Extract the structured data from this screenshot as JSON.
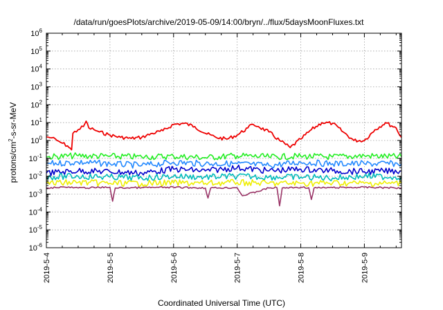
{
  "chart_data": {
    "type": "line",
    "title": "/data/run/goesPlots/archive/2019-05-09/14:00/bryn/../flux/5daysMoonFluxes.txt",
    "xlabel": "Coordinated Universal Time (UTC)",
    "ylabel": "protons/cm2-s-sr-MeV",
    "ylabel_parts": {
      "base": "protons/cm",
      "sup": "2",
      "rest": "-s-sr-MeV"
    },
    "yscale": "log",
    "ylim": [
      1e-06,
      1000000.0
    ],
    "xlim": [
      "2019-05-04",
      "2019-05-09T14:00"
    ],
    "grid": true,
    "y_ticks": [
      {
        "base": "10",
        "exp": "-6",
        "value": -6
      },
      {
        "base": "10",
        "exp": "-5",
        "value": -5
      },
      {
        "base": "10",
        "exp": "-4",
        "value": -4
      },
      {
        "base": "10",
        "exp": "-3",
        "value": -3
      },
      {
        "base": "10",
        "exp": "-2",
        "value": -2
      },
      {
        "base": "10",
        "exp": "-1",
        "value": -1
      },
      {
        "base": "10",
        "exp": "0",
        "value": 0
      },
      {
        "base": "10",
        "exp": "1",
        "value": 1
      },
      {
        "base": "10",
        "exp": "2",
        "value": 2
      },
      {
        "base": "10",
        "exp": "3",
        "value": 3
      },
      {
        "base": "10",
        "exp": "4",
        "value": 4
      },
      {
        "base": "10",
        "exp": "5",
        "value": 5
      },
      {
        "base": "10",
        "exp": "6",
        "value": 6
      }
    ],
    "x_ticks": [
      {
        "label": "2019-5-4",
        "date": "2019-05-04"
      },
      {
        "label": "2019-5-5",
        "date": "2019-05-05"
      },
      {
        "label": "2019-5-6",
        "date": "2019-05-06"
      },
      {
        "label": "2019-5-7",
        "date": "2019-05-07"
      },
      {
        "label": "2019-5-8",
        "date": "2019-05-08"
      },
      {
        "label": "2019-5-9",
        "date": "2019-05-09"
      }
    ],
    "series": [
      {
        "color": "#ee0000",
        "x": [
          "2019-05-04T00:00",
          "2019-05-04T02:00",
          "2019-05-04T04:00",
          "2019-05-04T06:00",
          "2019-05-04T08:00",
          "2019-05-04T09:30",
          "2019-05-04T10:00",
          "2019-05-04T12:00",
          "2019-05-04T14:00",
          "2019-05-04T15:00",
          "2019-05-04T16:00",
          "2019-05-04T18:00",
          "2019-05-04T20:00",
          "2019-05-05T00:00",
          "2019-05-05T04:00",
          "2019-05-05T08:00",
          "2019-05-05T12:00",
          "2019-05-05T16:00",
          "2019-05-05T20:00",
          "2019-05-06T00:00",
          "2019-05-06T04:00",
          "2019-05-06T08:00",
          "2019-05-06T12:00",
          "2019-05-06T16:00",
          "2019-05-06T20:00",
          "2019-05-07T00:00",
          "2019-05-07T04:00",
          "2019-05-07T06:00",
          "2019-05-07T08:00",
          "2019-05-07T12:00",
          "2019-05-07T16:00",
          "2019-05-07T20:00",
          "2019-05-08T00:00",
          "2019-05-08T04:00",
          "2019-05-08T08:00",
          "2019-05-08T12:00",
          "2019-05-08T16:00",
          "2019-05-08T20:00",
          "2019-05-09T00:00",
          "2019-05-09T04:00",
          "2019-05-09T08:00",
          "2019-05-09T12:00",
          "2019-05-09T14:00"
        ],
        "y": [
          1.6,
          1.4,
          1.0,
          0.7,
          0.5,
          0.3,
          2.5,
          4.0,
          6.0,
          12.0,
          5.0,
          4.0,
          3.0,
          2.0,
          1.5,
          1.3,
          1.5,
          2.5,
          3.5,
          8.0,
          9.0,
          6.0,
          2.5,
          1.5,
          1.2,
          2.0,
          5.0,
          8.0,
          6.0,
          3.0,
          1.0,
          0.4,
          1.2,
          4.0,
          10.0,
          9.0,
          3.0,
          1.0,
          1.0,
          4.0,
          10.0,
          5.0,
          1.5
        ]
      },
      {
        "color": "#22ee22",
        "x": [
          "2019-05-04T00:00",
          "2019-05-04T12:00",
          "2019-05-05T00:00",
          "2019-05-05T12:00",
          "2019-05-06T00:00",
          "2019-05-06T12:00",
          "2019-05-07T00:00",
          "2019-05-07T12:00",
          "2019-05-08T00:00",
          "2019-05-08T12:00",
          "2019-05-09T00:00",
          "2019-05-09T14:00"
        ],
        "y": [
          0.12,
          0.14,
          0.13,
          0.12,
          0.13,
          0.11,
          0.14,
          0.12,
          0.13,
          0.12,
          0.14,
          0.12
        ]
      },
      {
        "color": "#2288ff",
        "x": [
          "2019-05-04T00:00",
          "2019-05-04T12:00",
          "2019-05-05T00:00",
          "2019-05-05T12:00",
          "2019-05-06T00:00",
          "2019-05-06T12:00",
          "2019-05-07T00:00",
          "2019-05-07T12:00",
          "2019-05-08T00:00",
          "2019-05-08T12:00",
          "2019-05-09T00:00",
          "2019-05-09T14:00"
        ],
        "y": [
          0.05,
          0.06,
          0.05,
          0.04,
          0.06,
          0.05,
          0.05,
          0.04,
          0.06,
          0.05,
          0.05,
          0.05
        ]
      },
      {
        "color": "#0000cc",
        "x": [
          "2019-05-04T00:00",
          "2019-05-04T12:00",
          "2019-05-05T00:00",
          "2019-05-05T12:00",
          "2019-05-06T00:00",
          "2019-05-06T12:00",
          "2019-05-07T00:00",
          "2019-05-07T12:00",
          "2019-05-08T00:00",
          "2019-05-08T12:00",
          "2019-05-09T00:00",
          "2019-05-09T14:00"
        ],
        "y": [
          0.015,
          0.02,
          0.018,
          0.015,
          0.025,
          0.02,
          0.03,
          0.02,
          0.025,
          0.02,
          0.018,
          0.02
        ]
      },
      {
        "color": "#00bbbb",
        "x": [
          "2019-05-04T00:00",
          "2019-05-04T12:00",
          "2019-05-05T00:00",
          "2019-05-05T12:00",
          "2019-05-06T00:00",
          "2019-05-06T12:00",
          "2019-05-07T00:00",
          "2019-05-07T12:00",
          "2019-05-08T00:00",
          "2019-05-08T12:00",
          "2019-05-09T00:00",
          "2019-05-09T14:00"
        ],
        "y": [
          0.009,
          0.01,
          0.009,
          0.008,
          0.01,
          0.009,
          0.01,
          0.009,
          0.009,
          0.008,
          0.01,
          0.009
        ]
      },
      {
        "color": "#eeee00",
        "x": [
          "2019-05-04T00:00",
          "2019-05-04T12:00",
          "2019-05-05T00:00",
          "2019-05-05T12:00",
          "2019-05-06T00:00",
          "2019-05-06T12:00",
          "2019-05-07T00:00",
          "2019-05-07T12:00",
          "2019-05-08T00:00",
          "2019-05-08T12:00",
          "2019-05-09T00:00",
          "2019-05-09T14:00"
        ],
        "y": [
          0.004,
          0.0045,
          0.004,
          0.004,
          0.0042,
          0.004,
          0.0045,
          0.004,
          0.004,
          0.0042,
          0.004,
          0.004
        ]
      },
      {
        "color": "#993366",
        "x": [
          "2019-05-04T00:00",
          "2019-05-04T06:00",
          "2019-05-04T12:00",
          "2019-05-05T00:00",
          "2019-05-05T01:00",
          "2019-05-05T02:00",
          "2019-05-05T12:00",
          "2019-05-06T00:00",
          "2019-05-06T12:00",
          "2019-05-06T13:00",
          "2019-05-06T14:00",
          "2019-05-07T00:00",
          "2019-05-07T02:00",
          "2019-05-07T12:00",
          "2019-05-07T15:00",
          "2019-05-07T16:00",
          "2019-05-07T17:00",
          "2019-05-08T00:00",
          "2019-05-08T03:00",
          "2019-05-08T04:00",
          "2019-05-08T05:00",
          "2019-05-08T12:00",
          "2019-05-09T00:00",
          "2019-05-09T14:00"
        ],
        "y": [
          0.0022,
          0.0025,
          0.0022,
          0.0024,
          0.0004,
          0.0022,
          0.0023,
          0.0024,
          0.0022,
          0.0006,
          0.0022,
          0.0023,
          0.0008,
          0.0022,
          0.0023,
          0.00022,
          0.0022,
          0.0024,
          0.0023,
          0.0005,
          0.0022,
          0.0023,
          0.0024,
          0.0022
        ]
      }
    ]
  }
}
